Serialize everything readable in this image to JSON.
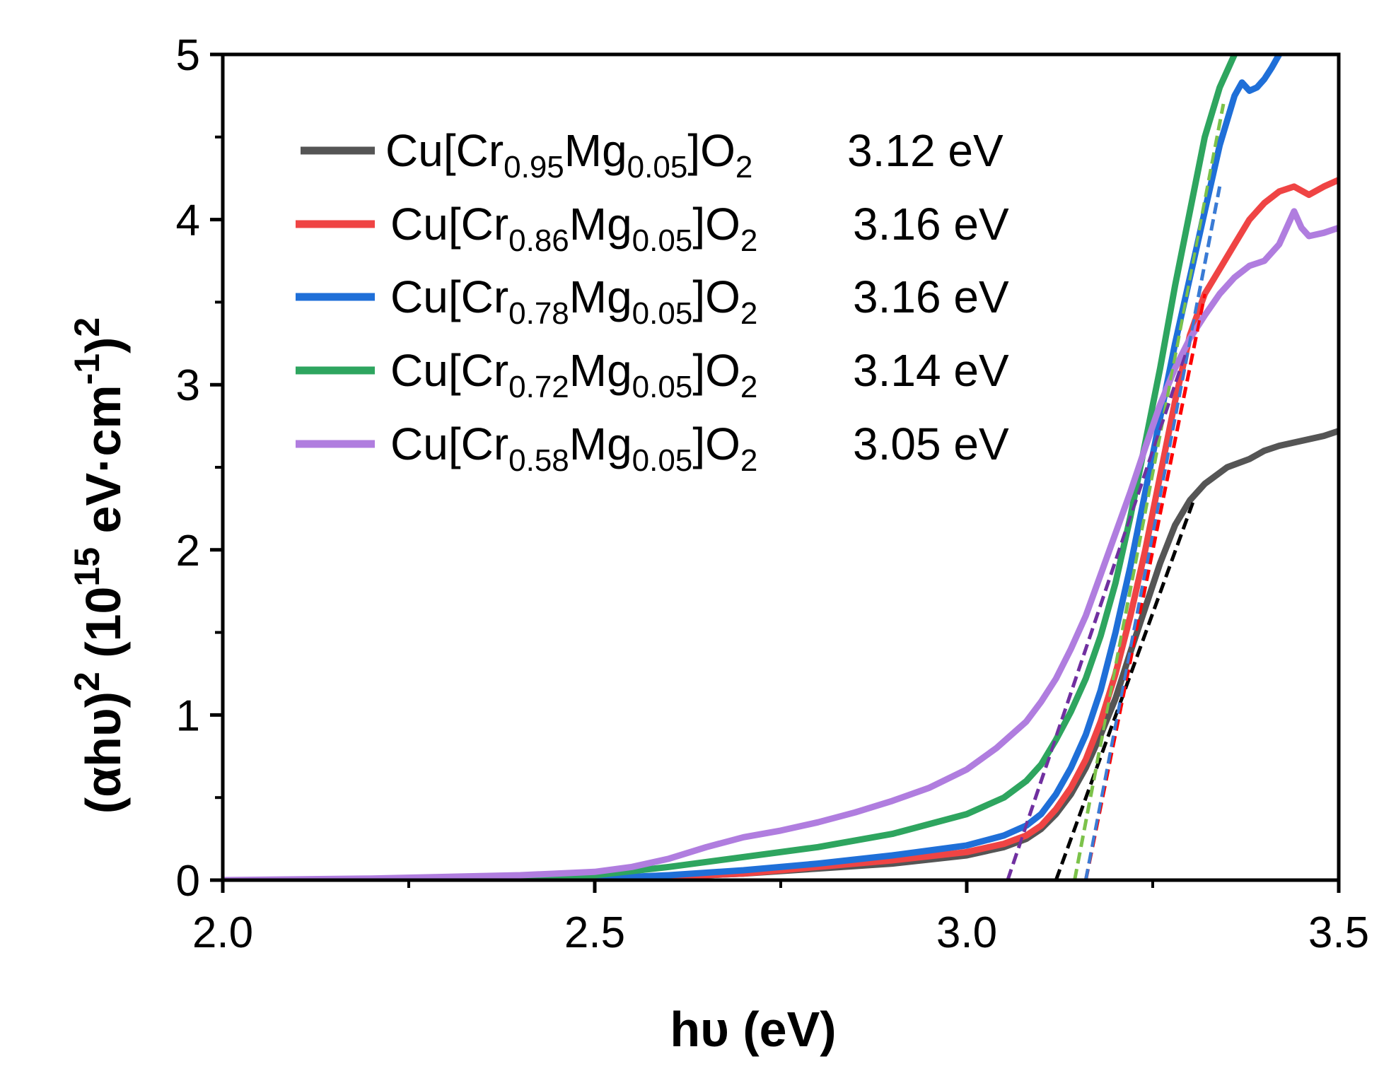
{
  "chart_data": {
    "type": "line",
    "title": "",
    "xlabel": "hυ (eV)",
    "ylabel": "(αhυ)² (10¹⁵ eV·cm⁻¹)²",
    "ylabel_parts": {
      "base": "(αhυ)",
      "sup1": "2",
      "mid": " (10",
      "sup2": "15",
      "mid2": " eV·cm",
      "sup3": "-1",
      "end": ")",
      "sup4": "2"
    },
    "xlim": [
      2.0,
      3.5
    ],
    "ylim": [
      0,
      5
    ],
    "xticks": [
      2.0,
      2.5,
      3.0,
      3.5
    ],
    "xtick_labels": [
      "2.0",
      "2.5",
      "3.0",
      "3.5"
    ],
    "yticks": [
      0,
      1,
      2,
      3,
      4,
      5
    ],
    "ytick_labels": [
      "0",
      "1",
      "2",
      "3",
      "4",
      "5"
    ],
    "legend_position": "upper-left",
    "series": [
      {
        "name": "Cu[Cr0.95Mg0.05]O2",
        "label_parts": {
          "a": "Cu[Cr",
          "b": "0.95",
          "c": "Mg",
          "d": "0.05",
          "e": "]O",
          "f": "2"
        },
        "bandgap": "3.12 eV",
        "color": "#555555",
        "fit_color": "#000000",
        "fit": {
          "x0": 3.12,
          "x1": 3.305,
          "y1": 2.3
        },
        "x": [
          2.0,
          2.2,
          2.4,
          2.5,
          2.6,
          2.7,
          2.8,
          2.9,
          3.0,
          3.05,
          3.08,
          3.1,
          3.12,
          3.14,
          3.16,
          3.18,
          3.2,
          3.22,
          3.24,
          3.26,
          3.28,
          3.3,
          3.32,
          3.35,
          3.38,
          3.4,
          3.42,
          3.45,
          3.48,
          3.5
        ],
        "y": [
          0.0,
          0.0,
          0.005,
          0.01,
          0.02,
          0.04,
          0.07,
          0.1,
          0.15,
          0.2,
          0.25,
          0.31,
          0.4,
          0.52,
          0.68,
          0.88,
          1.1,
          1.38,
          1.65,
          1.92,
          2.15,
          2.3,
          2.4,
          2.5,
          2.55,
          2.6,
          2.63,
          2.66,
          2.69,
          2.72
        ]
      },
      {
        "name": "Cu[Cr0.86Mg0.05]O2",
        "label_parts": {
          "a": "Cu[Cr",
          "b": "0.86",
          "c": "Mg",
          "d": "0.05",
          "e": "]O",
          "f": "2"
        },
        "bandgap": "3.16 eV",
        "color": "#ef4444",
        "fit_color": "#ff0000",
        "fit": {
          "x0": 3.16,
          "x1": 3.32,
          "y1": 3.55
        },
        "x": [
          2.0,
          2.2,
          2.4,
          2.5,
          2.6,
          2.7,
          2.8,
          2.9,
          3.0,
          3.05,
          3.08,
          3.1,
          3.12,
          3.14,
          3.16,
          3.18,
          3.2,
          3.22,
          3.24,
          3.26,
          3.28,
          3.3,
          3.32,
          3.34,
          3.36,
          3.38,
          3.4,
          3.42,
          3.44,
          3.46,
          3.48,
          3.5
        ],
        "y": [
          0.0,
          0.0,
          0.005,
          0.01,
          0.02,
          0.04,
          0.08,
          0.12,
          0.17,
          0.22,
          0.27,
          0.33,
          0.43,
          0.56,
          0.73,
          0.96,
          1.25,
          1.6,
          2.0,
          2.45,
          2.9,
          3.3,
          3.55,
          3.7,
          3.85,
          4.0,
          4.1,
          4.17,
          4.2,
          4.15,
          4.2,
          4.24
        ]
      },
      {
        "name": "Cu[Cr0.78Mg0.05]O2",
        "label_parts": {
          "a": "Cu[Cr",
          "b": "0.78",
          "c": "Mg",
          "d": "0.05",
          "e": "]O",
          "f": "2"
        },
        "bandgap": "3.16 eV",
        "color": "#1f6fd8",
        "fit_color": "#3a7bd5",
        "fit": {
          "x0": 3.16,
          "x1": 3.34,
          "y1": 4.2
        },
        "x": [
          2.0,
          2.2,
          2.4,
          2.5,
          2.6,
          2.7,
          2.8,
          2.9,
          3.0,
          3.05,
          3.08,
          3.1,
          3.12,
          3.14,
          3.16,
          3.18,
          3.2,
          3.22,
          3.24,
          3.26,
          3.28,
          3.3,
          3.32,
          3.34,
          3.36,
          3.37,
          3.38,
          3.39,
          3.4,
          3.41,
          3.42
        ],
        "y": [
          0.0,
          0.0,
          0.005,
          0.01,
          0.03,
          0.06,
          0.1,
          0.15,
          0.21,
          0.27,
          0.33,
          0.4,
          0.52,
          0.68,
          0.88,
          1.15,
          1.5,
          1.9,
          2.35,
          2.8,
          3.25,
          3.65,
          4.05,
          4.45,
          4.75,
          4.83,
          4.78,
          4.8,
          4.85,
          4.92,
          5.0
        ]
      },
      {
        "name": "Cu[Cr0.72Mg0.05]O2",
        "label_parts": {
          "a": "Cu[Cr",
          "b": "0.72",
          "c": "Mg",
          "d": "0.05",
          "e": "]O",
          "f": "2"
        },
        "bandgap": "3.14 eV",
        "color": "#2ea55f",
        "fit_color": "#7cc24a",
        "fit": {
          "x0": 3.145,
          "x1": 3.345,
          "y1": 4.7
        },
        "x": [
          2.0,
          2.2,
          2.4,
          2.5,
          2.6,
          2.7,
          2.8,
          2.9,
          3.0,
          3.05,
          3.08,
          3.1,
          3.12,
          3.14,
          3.16,
          3.18,
          3.2,
          3.22,
          3.24,
          3.26,
          3.28,
          3.3,
          3.32,
          3.34,
          3.35,
          3.36
        ],
        "y": [
          0.0,
          0.0,
          0.01,
          0.03,
          0.08,
          0.14,
          0.2,
          0.28,
          0.4,
          0.5,
          0.6,
          0.7,
          0.85,
          1.02,
          1.22,
          1.48,
          1.8,
          2.2,
          2.65,
          3.1,
          3.6,
          4.05,
          4.5,
          4.8,
          4.9,
          5.0
        ]
      },
      {
        "name": "Cu[Cr0.58Mg0.05]O2",
        "label_parts": {
          "a": "Cu[Cr",
          "b": "0.58",
          "c": "Mg",
          "d": "0.05",
          "e": "]O",
          "f": "2"
        },
        "bandgap": "3.05 eV",
        "color": "#b07ddf",
        "fit_color": "#7030a0",
        "fit": {
          "x0": 3.055,
          "x1": 3.295,
          "y1": 3.2
        },
        "x": [
          2.0,
          2.2,
          2.4,
          2.5,
          2.55,
          2.6,
          2.65,
          2.7,
          2.75,
          2.8,
          2.85,
          2.9,
          2.95,
          3.0,
          3.04,
          3.08,
          3.1,
          3.12,
          3.14,
          3.16,
          3.18,
          3.2,
          3.22,
          3.24,
          3.26,
          3.28,
          3.3,
          3.32,
          3.34,
          3.36,
          3.38,
          3.4,
          3.42,
          3.43,
          3.44,
          3.45,
          3.46,
          3.48,
          3.5
        ],
        "y": [
          0.0,
          0.01,
          0.03,
          0.05,
          0.08,
          0.13,
          0.2,
          0.26,
          0.3,
          0.35,
          0.41,
          0.48,
          0.56,
          0.67,
          0.8,
          0.96,
          1.08,
          1.22,
          1.4,
          1.6,
          1.85,
          2.1,
          2.35,
          2.62,
          2.88,
          3.1,
          3.28,
          3.42,
          3.55,
          3.65,
          3.72,
          3.75,
          3.85,
          3.95,
          4.05,
          3.95,
          3.9,
          3.92,
          3.95
        ]
      }
    ]
  }
}
